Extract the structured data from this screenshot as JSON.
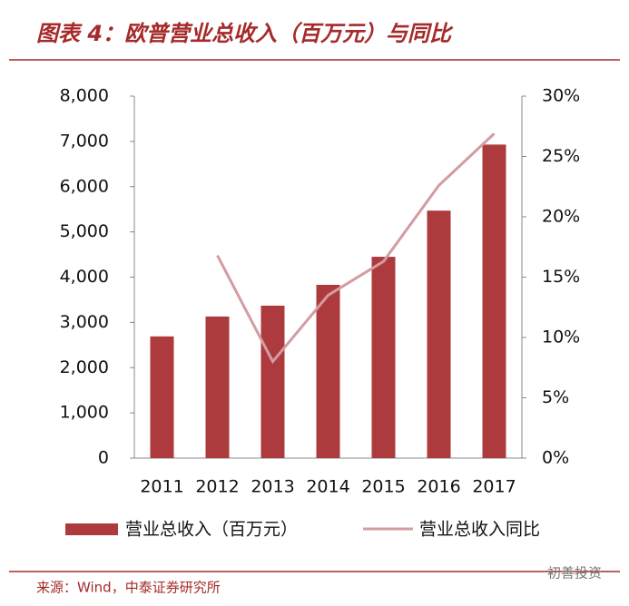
{
  "chart_data": {
    "type": "bar",
    "title": "图表 4：欧普营业总收入（百万元）与同比",
    "categories": [
      "2011",
      "2012",
      "2013",
      "2014",
      "2015",
      "2016",
      "2017"
    ],
    "series": [
      {
        "name": "营业总收入（百万元）",
        "type": "bar",
        "color": "#ad3b3d",
        "values": [
          2690,
          3130,
          3370,
          3830,
          4450,
          5470,
          6930
        ]
      },
      {
        "name": "营业总收入同比",
        "type": "line",
        "axis": "y2",
        "color": "#d39ca2",
        "values": [
          null,
          16.8,
          8.0,
          13.5,
          16.3,
          22.6,
          26.9
        ]
      }
    ],
    "ylim": [
      0,
      8000
    ],
    "yticks": [
      {
        "value": 0,
        "label": "0"
      },
      {
        "value": 1000,
        "label": "1,000"
      },
      {
        "value": 2000,
        "label": "2,000"
      },
      {
        "value": 3000,
        "label": "3,000"
      },
      {
        "value": 4000,
        "label": "4,000"
      },
      {
        "value": 5000,
        "label": "5,000"
      },
      {
        "value": 6000,
        "label": "6,000"
      },
      {
        "value": 7000,
        "label": "7,000"
      },
      {
        "value": 8000,
        "label": "8,000"
      }
    ],
    "y2lim": [
      0,
      30
    ],
    "y2ticks": [
      {
        "value": 0,
        "label": "0%"
      },
      {
        "value": 5,
        "label": "5%"
      },
      {
        "value": 10,
        "label": "10%"
      },
      {
        "value": 15,
        "label": "15%"
      },
      {
        "value": 20,
        "label": "20%"
      },
      {
        "value": 25,
        "label": "25%"
      },
      {
        "value": 30,
        "label": "30%"
      }
    ],
    "source": "来源：Wind，中泰证券研究所",
    "watermark": "初善投资"
  }
}
